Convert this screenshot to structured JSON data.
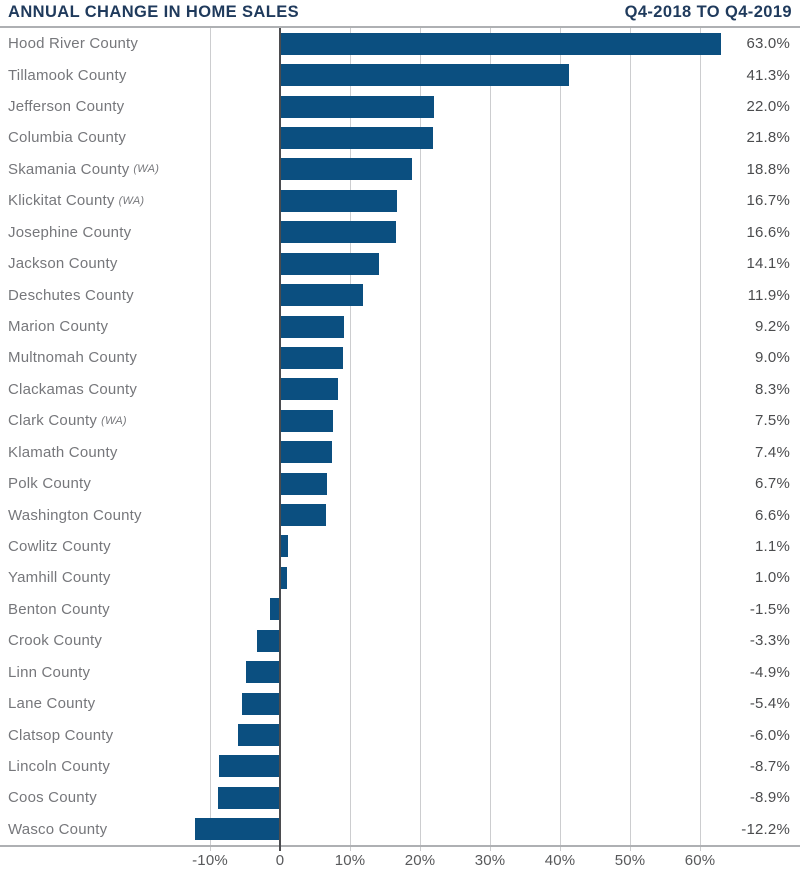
{
  "header": {
    "title": "ANNUAL CHANGE IN HOME SALES",
    "period": "Q4-2018 TO Q4-2019"
  },
  "chart_data": {
    "type": "bar",
    "orientation": "horizontal",
    "title": "ANNUAL CHANGE IN HOME SALES",
    "subtitle": "Q4-2018 TO Q4-2019",
    "xlabel": "",
    "ylabel": "",
    "grid": true,
    "legend": false,
    "x_axis": {
      "tick_positions": [
        -10,
        0,
        10,
        20,
        30,
        40,
        50,
        60
      ],
      "tick_labels": [
        "-10%",
        "0",
        "10%",
        "20%",
        "30%",
        "40%",
        "50%",
        "60%"
      ]
    },
    "categories": [
      {
        "name": "Hood River County",
        "state": ""
      },
      {
        "name": "Tillamook County",
        "state": ""
      },
      {
        "name": "Jefferson County",
        "state": ""
      },
      {
        "name": "Columbia County",
        "state": ""
      },
      {
        "name": "Skamania County",
        "state": "(WA)"
      },
      {
        "name": "Klickitat County",
        "state": "(WA)"
      },
      {
        "name": "Josephine County",
        "state": ""
      },
      {
        "name": "Jackson County",
        "state": ""
      },
      {
        "name": "Deschutes County",
        "state": ""
      },
      {
        "name": "Marion County",
        "state": ""
      },
      {
        "name": "Multnomah County",
        "state": ""
      },
      {
        "name": "Clackamas County",
        "state": ""
      },
      {
        "name": "Clark County",
        "state": "(WA)"
      },
      {
        "name": "Klamath County",
        "state": ""
      },
      {
        "name": "Polk County",
        "state": ""
      },
      {
        "name": "Washington County",
        "state": ""
      },
      {
        "name": "Cowlitz County",
        "state": ""
      },
      {
        "name": "Yamhill County",
        "state": ""
      },
      {
        "name": "Benton County",
        "state": ""
      },
      {
        "name": "Crook County",
        "state": ""
      },
      {
        "name": "Linn County",
        "state": ""
      },
      {
        "name": "Lane County",
        "state": ""
      },
      {
        "name": "Clatsop County",
        "state": ""
      },
      {
        "name": "Lincoln County",
        "state": ""
      },
      {
        "name": "Coos County",
        "state": ""
      },
      {
        "name": "Wasco County",
        "state": ""
      }
    ],
    "values": [
      63.0,
      41.3,
      22.0,
      21.8,
      18.8,
      16.7,
      16.6,
      14.1,
      11.9,
      9.2,
      9.0,
      8.3,
      7.5,
      7.4,
      6.7,
      6.6,
      1.1,
      1.0,
      -1.5,
      -3.3,
      -4.9,
      -5.4,
      -6.0,
      -8.7,
      -8.9,
      -12.2
    ],
    "value_labels": [
      "63.0%",
      "41.3%",
      "22.0%",
      "21.8%",
      "18.8%",
      "16.7%",
      "16.6%",
      "14.1%",
      "11.9%",
      "9.2%",
      "9.0%",
      "8.3%",
      "7.5%",
      "7.4%",
      "6.7%",
      "6.6%",
      "1.1%",
      "1.0%",
      "-1.5%",
      "-3.3%",
      "-4.9%",
      "-5.4%",
      "-6.0%",
      "-8.7%",
      "-8.9%",
      "-12.2%"
    ]
  },
  "colors": {
    "bar": "#0B4F80",
    "title": "#1F3A5C",
    "rule": "#AEB0B3",
    "grid": "#CCCDCF",
    "zero_line": "#4B4C4F",
    "county_label": "#76777B",
    "value_label": "#4B4C4E",
    "tick_label": "#58595B",
    "background": "#FFFFFF"
  }
}
